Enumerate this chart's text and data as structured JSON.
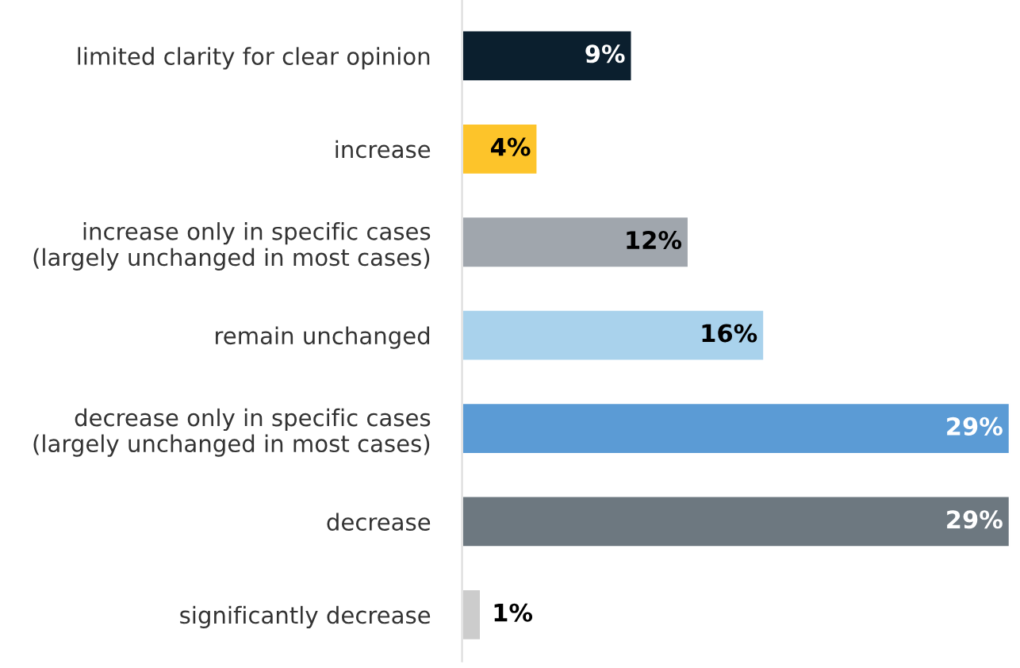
{
  "chart_data": {
    "type": "bar",
    "orientation": "horizontal",
    "categories": [
      "limited clarity for clear opinion",
      "increase",
      "increase only in specific cases\n(largely unchanged in most cases)",
      "remain unchanged",
      "decrease only in specific cases\n(largely unchanged in most cases)",
      "decrease",
      "significantly decrease"
    ],
    "values": [
      9,
      4,
      12,
      16,
      29,
      29,
      1
    ],
    "value_labels": [
      "9%",
      "4%",
      "12%",
      "16%",
      "29%",
      "29%",
      "1%"
    ],
    "colors": [
      "#0b1f2e",
      "#fdc42a",
      "#a0a6ad",
      "#a9d2ec",
      "#5b9bd5",
      "#6d7880",
      "#cccccc"
    ]
  }
}
